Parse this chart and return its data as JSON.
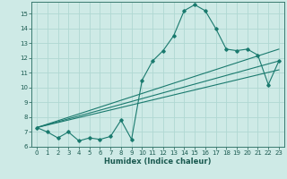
{
  "title": "",
  "xlabel": "Humidex (Indice chaleur)",
  "bg_color": "#ceeae6",
  "line_color": "#1a7a6e",
  "grid_color": "#b0d8d2",
  "xlim": [
    -0.5,
    23.5
  ],
  "ylim": [
    6,
    15.8
  ],
  "xticks": [
    0,
    1,
    2,
    3,
    4,
    5,
    6,
    7,
    8,
    9,
    10,
    11,
    12,
    13,
    14,
    15,
    16,
    17,
    18,
    19,
    20,
    21,
    22,
    23
  ],
  "yticks": [
    6,
    7,
    8,
    9,
    10,
    11,
    12,
    13,
    14,
    15
  ],
  "main_x": [
    0,
    1,
    2,
    3,
    4,
    5,
    6,
    7,
    8,
    9,
    10,
    11,
    12,
    13,
    14,
    15,
    16,
    17,
    18,
    19,
    20,
    21,
    22,
    23
  ],
  "main_y": [
    7.3,
    7.0,
    6.6,
    7.0,
    6.4,
    6.6,
    6.5,
    6.7,
    7.8,
    6.5,
    10.5,
    11.8,
    12.5,
    13.5,
    15.2,
    15.6,
    15.2,
    14.0,
    12.6,
    12.5,
    12.6,
    12.2,
    10.2,
    11.8
  ],
  "line1_x": [
    0,
    23
  ],
  "line1_y": [
    7.3,
    12.6
  ],
  "line2_x": [
    0,
    23
  ],
  "line2_y": [
    7.3,
    11.8
  ],
  "line3_x": [
    0,
    23
  ],
  "line3_y": [
    7.3,
    11.2
  ]
}
